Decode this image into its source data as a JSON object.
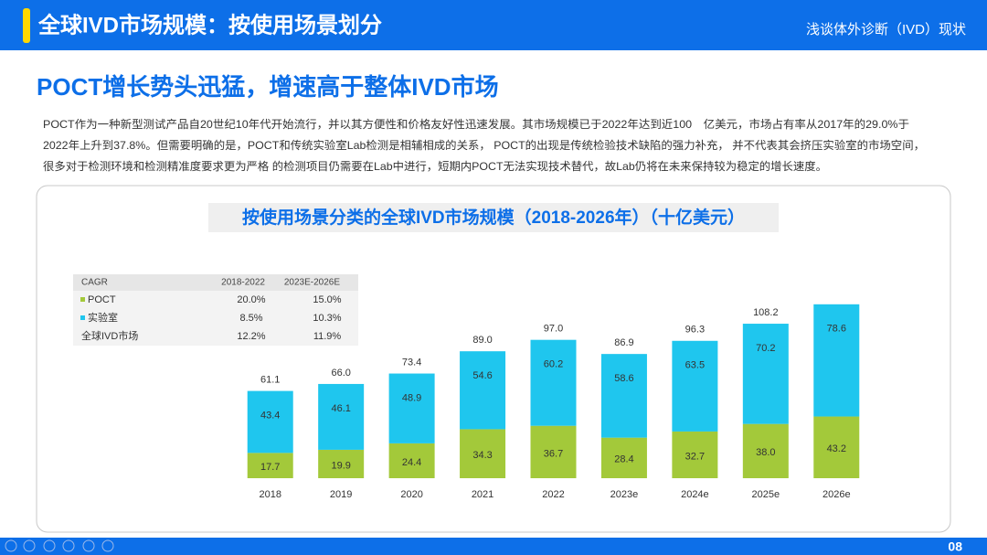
{
  "header": {
    "title": "全球IVD市场规模：按使用场景划分",
    "right": "浅谈体外诊断（IVD）现状"
  },
  "subtitle": "POCT增长势头迅猛，增速高于整体IVD市场",
  "paragraph": [
    "POCT作为一种新型测试产品自20世纪10年代开始流行，并以其方便性和价格友好性迅速发展。其市场规模已于2022年达到近100　亿美元，市场占有率从2017年的29.0%于",
    "2022年上升到37.8%。但需要明确的是，POCT和传统实验室Lab检测是相辅相成的关系， POCT的出现是传统检验技术缺陷的强力补充， 并不代表其会挤压实验室的市场空间，",
    "很多对于检测环境和检测精准度要求更为严格 的检测项目仍需要在Lab中进行，短期内POCT无法实现技术替代，故Lab仍将在未来保持较为稳定的增长速度。"
  ],
  "table": {
    "header": [
      "CAGR",
      "2018-2022",
      "2023E-2026E"
    ],
    "rows": [
      [
        "20.0%",
        "15.0%"
      ],
      [
        "8.5%",
        "10.3%"
      ],
      [
        "12.2%",
        "11.9%"
      ]
    ],
    "total_label": "全球IVD市场"
  },
  "page_number": "08",
  "chart_data": {
    "type": "stacked_bar",
    "title": "按使用场景分类的全球IVD市场规模（2018-2026年）（十亿美元）",
    "categories": [
      "2018",
      "2019",
      "2020",
      "2021",
      "2022",
      "2023e",
      "2024e",
      "2025e",
      "2026e"
    ],
    "series": [
      {
        "name": "POCT",
        "color": "#a3c93a",
        "values": [
          17.7,
          19.9,
          24.4,
          34.3,
          36.7,
          28.4,
          32.7,
          38.0,
          43.2
        ],
        "value_labels": [
          "17.7",
          "19.9",
          "24.4",
          "34.3",
          "36.7",
          "28.4",
          "32.7",
          "38.0",
          "43.2"
        ]
      },
      {
        "name": "实验室",
        "color": "#1fc6ee",
        "values": [
          43.4,
          46.1,
          48.9,
          54.6,
          60.2,
          58.6,
          63.5,
          70.2,
          78.6
        ],
        "value_labels": [
          "43.4",
          "46.1",
          "48.9",
          "54.6",
          "60.2",
          "58.6",
          "63.5",
          "70.2",
          "78.6"
        ]
      }
    ],
    "totals": [
      61.1,
      66.0,
      73.4,
      89.0,
      97.0,
      86.9,
      96.3,
      108.2,
      121.8
    ],
    "total_labels": [
      "61.1",
      "66.0",
      "73.4",
      "89.0",
      "97.0",
      "86.9",
      "96.3",
      "108.2",
      null
    ],
    "ylim": [
      0,
      130
    ]
  }
}
